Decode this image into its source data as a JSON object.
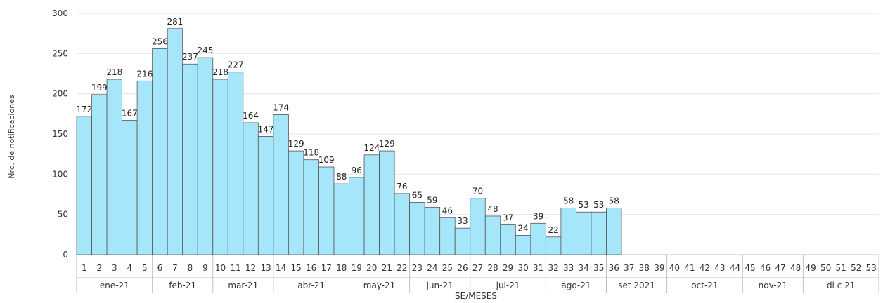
{
  "chart_data": {
    "type": "bar",
    "xlabel": "SE/MESES",
    "ylabel": "Nro. de notificaciones",
    "ylim": [
      0,
      300
    ],
    "yticks": [
      "0",
      "50",
      "100",
      "150",
      "200",
      "250",
      "300"
    ],
    "grid": true,
    "categories": [
      "1",
      "2",
      "3",
      "4",
      "5",
      "6",
      "7",
      "8",
      "9",
      "10",
      "11",
      "12",
      "13",
      "14",
      "15",
      "16",
      "17",
      "18",
      "19",
      "20",
      "21",
      "22",
      "23",
      "24",
      "25",
      "26",
      "27",
      "28",
      "29",
      "30",
      "31",
      "32",
      "33",
      "34",
      "35",
      "36",
      "37",
      "38",
      "39",
      "40",
      "41",
      "42",
      "43",
      "44",
      "45",
      "46",
      "47",
      "48",
      "49",
      "50",
      "51",
      "52",
      "53"
    ],
    "values": [
      172,
      199,
      218,
      167,
      216,
      256,
      281,
      237,
      245,
      218,
      227,
      164,
      147,
      174,
      129,
      118,
      109,
      88,
      96,
      124,
      129,
      76,
      65,
      59,
      46,
      33,
      70,
      48,
      37,
      24,
      39,
      22,
      58,
      53,
      53,
      58,
      null,
      null,
      null,
      null,
      null,
      null,
      null,
      null,
      null,
      null,
      null,
      null,
      null,
      null,
      null,
      null,
      null
    ],
    "months": [
      {
        "label": "ene-21",
        "start": 1,
        "end": 5
      },
      {
        "label": "feb-21",
        "start": 6,
        "end": 9
      },
      {
        "label": "mar-21",
        "start": 10,
        "end": 13
      },
      {
        "label": "abr-21",
        "start": 14,
        "end": 18
      },
      {
        "label": "may-21",
        "start": 19,
        "end": 22
      },
      {
        "label": "jun-21",
        "start": 23,
        "end": 26
      },
      {
        "label": "jul-21",
        "start": 27,
        "end": 31
      },
      {
        "label": "ago-21",
        "start": 32,
        "end": 35
      },
      {
        "label": "set 2021",
        "start": 36,
        "end": 39
      },
      {
        "label": "oct-21",
        "start": 40,
        "end": 44
      },
      {
        "label": "nov-21",
        "start": 45,
        "end": 48
      },
      {
        "label": "di c 21",
        "start": 49,
        "end": 53
      }
    ],
    "colors": {
      "bar_fill": "#a6e6fb",
      "bar_stroke": "#555555",
      "grid": "#e6e6e6",
      "axis": "#bfbfbf"
    }
  }
}
